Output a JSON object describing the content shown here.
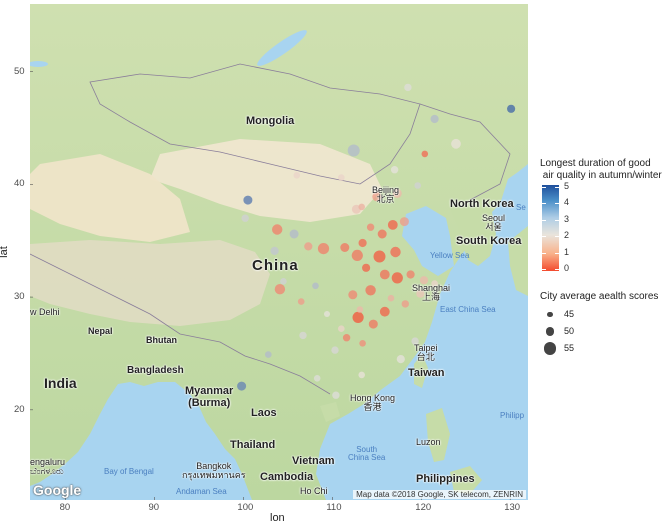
{
  "axes": {
    "x_title": "lon",
    "y_title": "lat",
    "x_ticks": [
      "80",
      "90",
      "100",
      "110",
      "120",
      "130"
    ],
    "y_ticks": [
      "50",
      "40",
      "30",
      "20"
    ]
  },
  "map": {
    "countries": [
      {
        "key": "mongolia",
        "text": "Mongolia"
      },
      {
        "key": "china",
        "text": "China"
      },
      {
        "key": "india",
        "text": "India"
      },
      {
        "key": "north_korea",
        "text": "North Korea"
      },
      {
        "key": "south_korea",
        "text": "South Korea"
      },
      {
        "key": "myanmar",
        "text": "Myanmar\n(Burma)"
      },
      {
        "key": "laos",
        "text": "Laos"
      },
      {
        "key": "thailand",
        "text": "Thailand"
      },
      {
        "key": "vietnam",
        "text": "Vietnam"
      },
      {
        "key": "cambodia",
        "text": "Cambodia"
      },
      {
        "key": "taiwan",
        "text": "Taiwan"
      },
      {
        "key": "bangladesh",
        "text": "Bangladesh"
      },
      {
        "key": "bhutan",
        "text": "Bhutan"
      },
      {
        "key": "nepal",
        "text": "Nepal"
      },
      {
        "key": "philippines",
        "text": "Philippines"
      }
    ],
    "cities": [
      {
        "key": "beijing",
        "text": "Beijing\n北京"
      },
      {
        "key": "seoul",
        "text": "Seoul\n서울"
      },
      {
        "key": "shanghai",
        "text": "Shanghai\n上海"
      },
      {
        "key": "taipei",
        "text": "Taipei\n台北"
      },
      {
        "key": "hong_kong",
        "text": "Hong Kong\n香港"
      },
      {
        "key": "new_delhi",
        "text": "w Delhi"
      },
      {
        "key": "bangkok",
        "text": "Bangkok\nกรุงเทพมหานคร"
      },
      {
        "key": "luzon",
        "text": "Luzon"
      },
      {
        "key": "bengaluru",
        "text": "engaluru\nಬೆಂಗಳೂರು"
      },
      {
        "key": "ho_chi",
        "text": "Ho Chi"
      },
      {
        "key": "philipp",
        "text": "Philipp"
      }
    ],
    "waters": [
      {
        "key": "yellow_sea",
        "text": "Yellow Sea"
      },
      {
        "key": "east_china_sea",
        "text": "East China Sea"
      },
      {
        "key": "south_china_sea",
        "text": "South\nChina Sea"
      },
      {
        "key": "bay_of_bengal",
        "text": "Bay of Bengal"
      },
      {
        "key": "andaman_sea",
        "text": "Andaman Sea"
      },
      {
        "key": "se",
        "text": "Se"
      }
    ],
    "attribution": "Map data ©2018 Google, SK telecom, ZENRIN",
    "logo_text": "Google"
  },
  "legend": {
    "color_title": "Longest duration of good\n air quality in autumn/winter",
    "color_ticks": [
      "5",
      "4",
      "3",
      "2",
      "1",
      "0"
    ],
    "size_title": "City average aealth scores",
    "size_ticks": [
      "45",
      "50",
      "55"
    ]
  },
  "chart_data": {
    "type": "scatter",
    "xlabel": "lon",
    "ylabel": "lat",
    "xlim": [
      76,
      132
    ],
    "ylim": [
      12,
      56
    ],
    "color_scale": {
      "min": 0,
      "max": 5,
      "low_color": "#f34a2d",
      "mid_color": "#e9e4dc",
      "high_color": "#1f4f9c"
    },
    "size_scale": {
      "values": [
        45,
        50,
        55
      ]
    },
    "points": [
      {
        "lon": 130.1,
        "lat": 46.7,
        "value": 4.5,
        "score": 49
      },
      {
        "lon": 121.5,
        "lat": 45.8,
        "value": 3.0,
        "score": 49
      },
      {
        "lon": 118.5,
        "lat": 48.6,
        "value": 2.4,
        "score": 48
      },
      {
        "lon": 123.9,
        "lat": 43.6,
        "value": 2.2,
        "score": 51
      },
      {
        "lon": 117.0,
        "lat": 41.3,
        "value": 2.3,
        "score": 48
      },
      {
        "lon": 120.4,
        "lat": 42.7,
        "value": 0.5,
        "score": 47
      },
      {
        "lon": 112.4,
        "lat": 43.0,
        "value": 3.0,
        "score": 54
      },
      {
        "lon": 111.0,
        "lat": 40.6,
        "value": 2.0,
        "score": 47
      },
      {
        "lon": 106.0,
        "lat": 40.8,
        "value": 2.0,
        "score": 47
      },
      {
        "lon": 100.5,
        "lat": 38.6,
        "value": 4.2,
        "score": 50
      },
      {
        "lon": 100.2,
        "lat": 37.0,
        "value": 2.6,
        "score": 48
      },
      {
        "lon": 103.8,
        "lat": 36.0,
        "value": 0.8,
        "score": 52
      },
      {
        "lon": 105.7,
        "lat": 35.6,
        "value": 3.0,
        "score": 50
      },
      {
        "lon": 107.3,
        "lat": 34.5,
        "value": 1.2,
        "score": 49
      },
      {
        "lon": 109.0,
        "lat": 34.3,
        "value": 0.8,
        "score": 53
      },
      {
        "lon": 111.4,
        "lat": 34.4,
        "value": 0.7,
        "score": 50
      },
      {
        "lon": 112.7,
        "lat": 37.8,
        "value": 1.8,
        "score": 50
      },
      {
        "lon": 113.3,
        "lat": 38.0,
        "value": 1.5,
        "score": 47
      },
      {
        "lon": 115.0,
        "lat": 38.9,
        "value": 1.2,
        "score": 50
      },
      {
        "lon": 117.3,
        "lat": 39.2,
        "value": 1.6,
        "score": 50
      },
      {
        "lon": 119.6,
        "lat": 39.9,
        "value": 2.6,
        "score": 47
      },
      {
        "lon": 114.3,
        "lat": 36.2,
        "value": 0.9,
        "score": 48
      },
      {
        "lon": 115.6,
        "lat": 35.6,
        "value": 0.6,
        "score": 50
      },
      {
        "lon": 116.8,
        "lat": 36.4,
        "value": 0.4,
        "score": 51
      },
      {
        "lon": 118.1,
        "lat": 36.7,
        "value": 1.2,
        "score": 50
      },
      {
        "lon": 113.4,
        "lat": 34.8,
        "value": 0.5,
        "score": 49
      },
      {
        "lon": 112.8,
        "lat": 33.7,
        "value": 0.7,
        "score": 53
      },
      {
        "lon": 115.3,
        "lat": 33.6,
        "value": 0.3,
        "score": 54
      },
      {
        "lon": 117.1,
        "lat": 34.0,
        "value": 0.5,
        "score": 52
      },
      {
        "lon": 113.8,
        "lat": 32.6,
        "value": 0.4,
        "score": 49
      },
      {
        "lon": 115.9,
        "lat": 32.0,
        "value": 0.6,
        "score": 51
      },
      {
        "lon": 117.3,
        "lat": 31.7,
        "value": 0.3,
        "score": 53
      },
      {
        "lon": 118.8,
        "lat": 32.0,
        "value": 0.8,
        "score": 49
      },
      {
        "lon": 120.3,
        "lat": 31.5,
        "value": 1.6,
        "score": 49
      },
      {
        "lon": 121.5,
        "lat": 31.2,
        "value": 2.0,
        "score": 47
      },
      {
        "lon": 119.9,
        "lat": 30.3,
        "value": 1.8,
        "score": 49
      },
      {
        "lon": 118.2,
        "lat": 29.4,
        "value": 1.2,
        "score": 48
      },
      {
        "lon": 114.3,
        "lat": 30.6,
        "value": 0.6,
        "score": 52
      },
      {
        "lon": 112.3,
        "lat": 30.2,
        "value": 0.9,
        "score": 50
      },
      {
        "lon": 112.9,
        "lat": 28.2,
        "value": 0.2,
        "score": 53
      },
      {
        "lon": 114.6,
        "lat": 27.6,
        "value": 0.7,
        "score": 50
      },
      {
        "lon": 115.9,
        "lat": 28.7,
        "value": 0.4,
        "score": 51
      },
      {
        "lon": 116.6,
        "lat": 29.9,
        "value": 1.5,
        "score": 47
      },
      {
        "lon": 111.6,
        "lat": 26.4,
        "value": 0.8,
        "score": 48
      },
      {
        "lon": 113.4,
        "lat": 25.9,
        "value": 1.0,
        "score": 47
      },
      {
        "lon": 106.5,
        "lat": 29.6,
        "value": 1.2,
        "score": 47
      },
      {
        "lon": 104.1,
        "lat": 30.7,
        "value": 0.9,
        "score": 52
      },
      {
        "lon": 104.5,
        "lat": 31.4,
        "value": 2.6,
        "score": 47
      },
      {
        "lon": 103.5,
        "lat": 34.1,
        "value": 2.8,
        "score": 49
      },
      {
        "lon": 108.1,
        "lat": 31.0,
        "value": 3.0,
        "score": 47
      },
      {
        "lon": 109.4,
        "lat": 28.5,
        "value": 2.3,
        "score": 46
      },
      {
        "lon": 111.0,
        "lat": 27.2,
        "value": 2.0,
        "score": 47
      },
      {
        "lon": 113.1,
        "lat": 28.9,
        "value": 1.6,
        "score": 47
      },
      {
        "lon": 119.3,
        "lat": 26.1,
        "value": 2.5,
        "score": 48
      },
      {
        "lon": 117.7,
        "lat": 24.5,
        "value": 2.3,
        "score": 49
      },
      {
        "lon": 113.3,
        "lat": 23.1,
        "value": 2.2,
        "score": 47
      },
      {
        "lon": 110.3,
        "lat": 25.3,
        "value": 2.5,
        "score": 48
      },
      {
        "lon": 108.3,
        "lat": 22.8,
        "value": 2.4,
        "score": 47
      },
      {
        "lon": 110.4,
        "lat": 21.3,
        "value": 2.4,
        "score": 48
      },
      {
        "lon": 106.7,
        "lat": 26.6,
        "value": 2.5,
        "score": 48
      },
      {
        "lon": 102.8,
        "lat": 24.9,
        "value": 3.0,
        "score": 47
      },
      {
        "lon": 99.8,
        "lat": 22.1,
        "value": 4.0,
        "score": 50
      }
    ]
  }
}
